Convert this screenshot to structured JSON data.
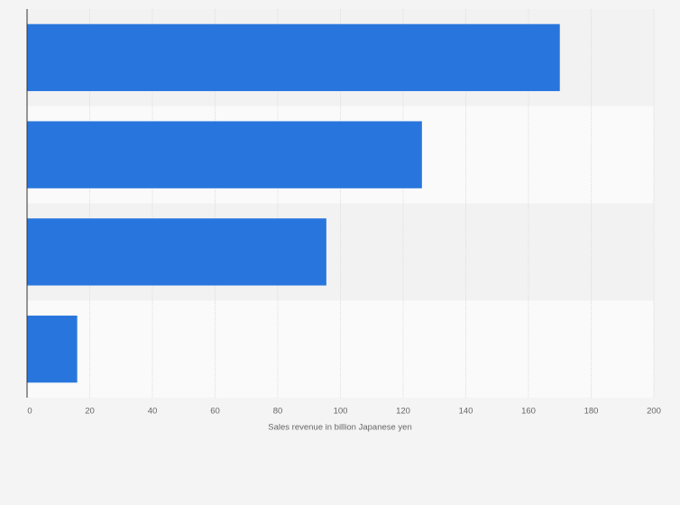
{
  "chart_data": {
    "type": "bar",
    "categories": [
      null,
      null,
      null,
      null
    ],
    "values": [
      170,
      126,
      95.5,
      16
    ],
    "color": "#2876dd",
    "xlim": [
      0,
      200
    ],
    "xticks": [
      0,
      20,
      40,
      60,
      80,
      100,
      120,
      140,
      160,
      180,
      200
    ],
    "x_label": "Sales revenue in billion Japanese yen",
    "grid": true
  }
}
